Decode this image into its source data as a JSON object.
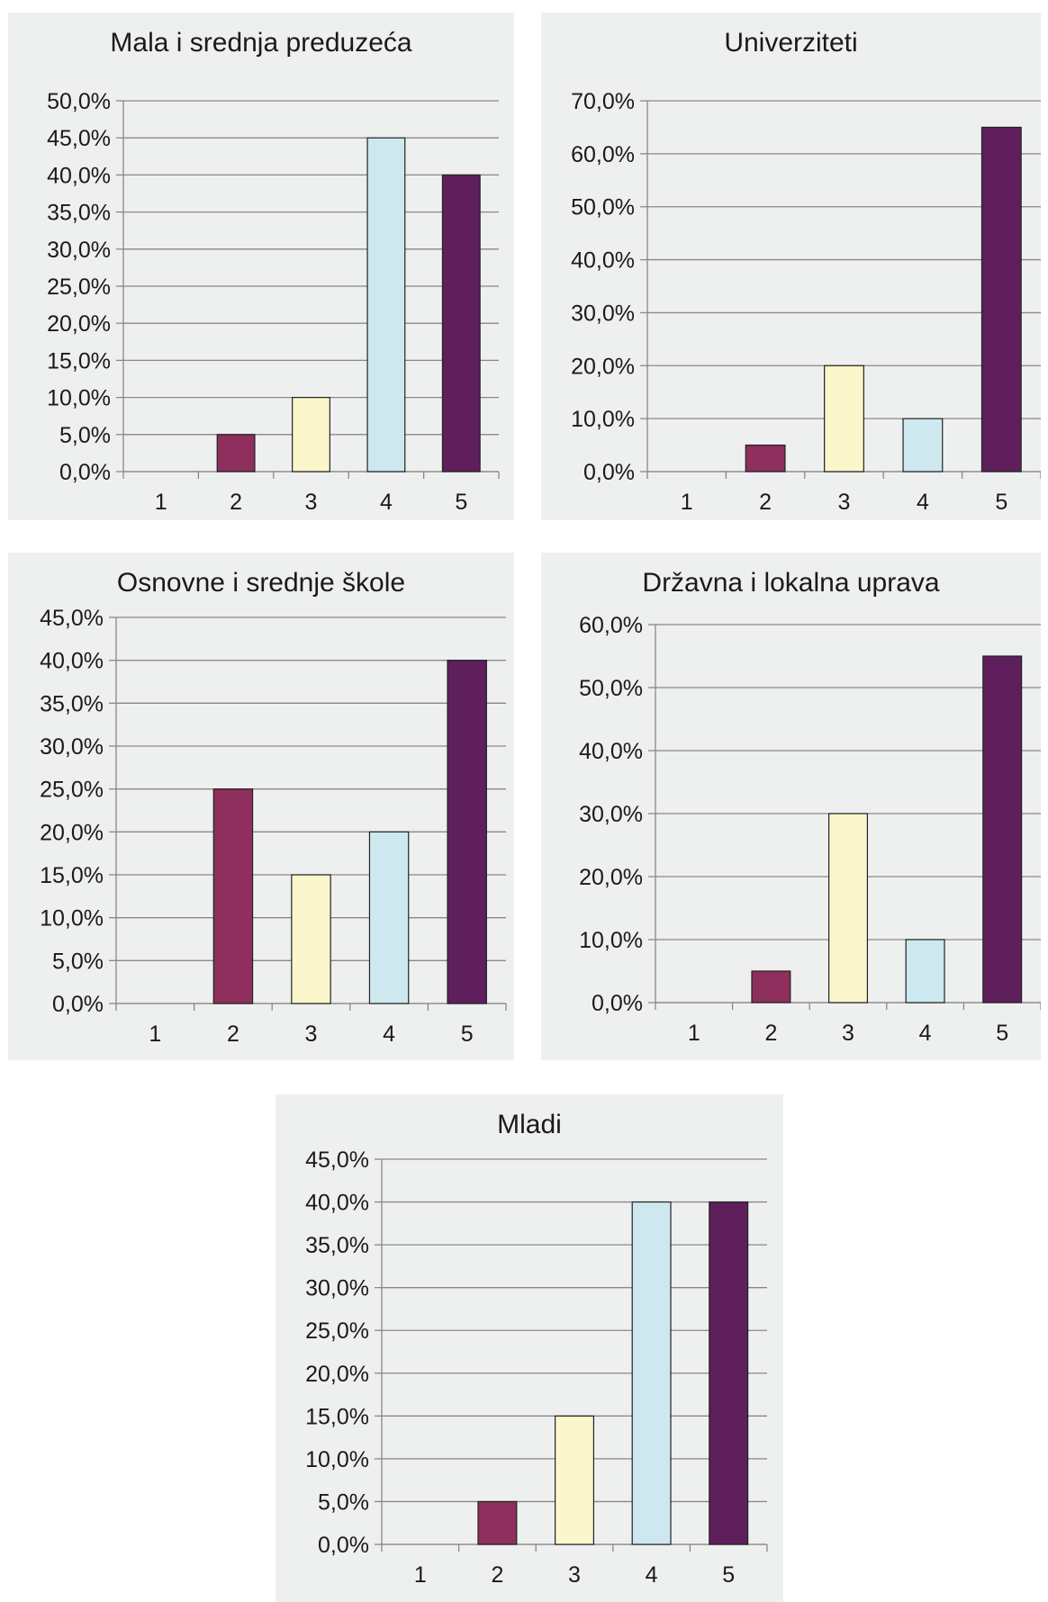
{
  "chart_data": [
    {
      "type": "bar",
      "title": "Mala i srednja preduzeća",
      "categories": [
        "1",
        "2",
        "3",
        "4",
        "5"
      ],
      "values": [
        0,
        5,
        10,
        45,
        40
      ],
      "ylim": [
        0,
        50
      ],
      "ystep": 5,
      "yticks": [
        "0,0%",
        "5,0%",
        "10,0%",
        "15,0%",
        "20,0%",
        "25,0%",
        "30,0%",
        "35,0%",
        "40,0%",
        "45,0%",
        "50,0%"
      ],
      "grid": true,
      "xlabel": "",
      "ylabel": ""
    },
    {
      "type": "bar",
      "title": "Univerziteti",
      "categories": [
        "1",
        "2",
        "3",
        "4",
        "5"
      ],
      "values": [
        0,
        5,
        20,
        10,
        65
      ],
      "ylim": [
        0,
        70
      ],
      "ystep": 10,
      "yticks": [
        "0,0%",
        "10,0%",
        "20,0%",
        "30,0%",
        "40,0%",
        "50,0%",
        "60,0%",
        "70,0%"
      ],
      "grid": true,
      "xlabel": "",
      "ylabel": ""
    },
    {
      "type": "bar",
      "title": "Osnovne i srednje škole",
      "categories": [
        "1",
        "2",
        "3",
        "4",
        "5"
      ],
      "values": [
        0,
        25,
        15,
        20,
        40
      ],
      "ylim": [
        0,
        45
      ],
      "ystep": 5,
      "yticks": [
        "0,0%",
        "5,0%",
        "10,0%",
        "15,0%",
        "20,0%",
        "25,0%",
        "30,0%",
        "35,0%",
        "40,0%",
        "45,0%"
      ],
      "grid": true,
      "xlabel": "",
      "ylabel": ""
    },
    {
      "type": "bar",
      "title": "Državna i lokalna uprava",
      "categories": [
        "1",
        "2",
        "3",
        "4",
        "5"
      ],
      "values": [
        0,
        5,
        30,
        10,
        55
      ],
      "ylim": [
        0,
        60
      ],
      "ystep": 10,
      "yticks": [
        "0,0%",
        "10,0%",
        "20,0%",
        "30,0%",
        "40,0%",
        "50,0%",
        "60,0%"
      ],
      "grid": true,
      "xlabel": "",
      "ylabel": ""
    },
    {
      "type": "bar",
      "title": "Mladi",
      "categories": [
        "1",
        "2",
        "3",
        "4",
        "5"
      ],
      "values": [
        0,
        5,
        15,
        40,
        40
      ],
      "ylim": [
        0,
        45
      ],
      "ystep": 5,
      "yticks": [
        "0,0%",
        "5,0%",
        "10,0%",
        "15,0%",
        "20,0%",
        "25,0%",
        "30,0%",
        "35,0%",
        "40,0%",
        "45,0%"
      ],
      "grid": true,
      "xlabel": "",
      "ylabel": ""
    }
  ],
  "colors": {
    "panel_bg": "#eef0ef",
    "grid": "#888888",
    "bar_outline": "#222222",
    "bars": [
      "#8e2f5d",
      "#8e2f5d",
      "#fbf6cb",
      "#cde8ef",
      "#5e1f5c"
    ]
  }
}
